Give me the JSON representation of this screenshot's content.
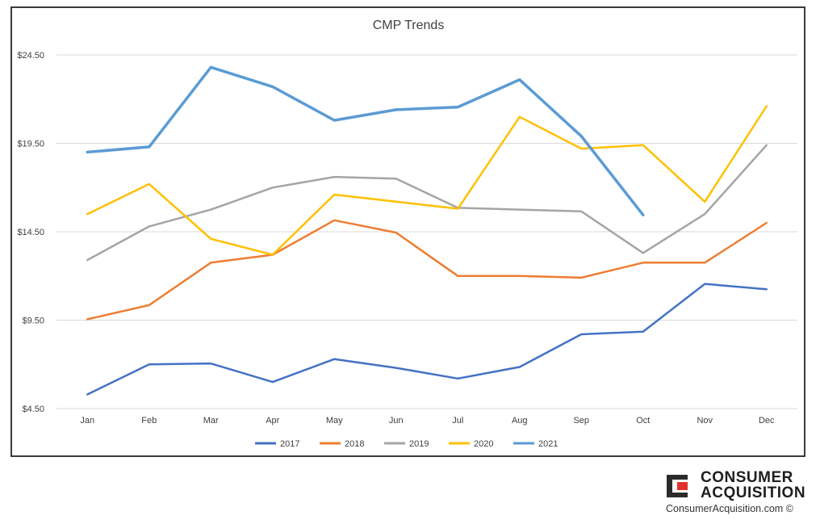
{
  "chart_data": {
    "type": "line",
    "title": "CMP Trends",
    "xlabel": "",
    "ylabel": "",
    "categories": [
      "Jan",
      "Feb",
      "Mar",
      "Apr",
      "May",
      "Jun",
      "Jul",
      "Aug",
      "Sep",
      "Oct",
      "Nov",
      "Dec"
    ],
    "yticks": [
      "$4.50",
      "$9.50",
      "$14.50",
      "$19.50",
      "$24.50"
    ],
    "ylim": [
      4.5,
      24.5
    ],
    "grid": true,
    "legend_position": "bottom",
    "series": [
      {
        "name": "2017",
        "color": "#4472C4",
        "values": [
          5.3,
          7.0,
          7.05,
          6.0,
          7.3,
          6.8,
          6.2,
          6.85,
          8.7,
          8.85,
          11.55,
          11.25
        ]
      },
      {
        "name": "2018",
        "color": "#ED7D31",
        "values": [
          9.55,
          10.35,
          12.75,
          13.2,
          15.15,
          14.45,
          12.0,
          12.0,
          11.9,
          12.75,
          12.75,
          15.0
        ]
      },
      {
        "name": "2019",
        "color": "#A5A5A5",
        "values": [
          12.9,
          14.8,
          15.75,
          17.0,
          17.6,
          17.5,
          15.85,
          15.75,
          15.65,
          13.3,
          15.5,
          19.4
        ]
      },
      {
        "name": "2020",
        "color": "#FFC000",
        "values": [
          15.5,
          17.2,
          14.1,
          13.2,
          16.6,
          16.2,
          15.8,
          21.0,
          19.2,
          19.4,
          16.2,
          21.6
        ]
      },
      {
        "name": "2021",
        "color": "#5B9BD5",
        "values": [
          19.0,
          19.3,
          23.8,
          22.7,
          20.8,
          21.4,
          21.55,
          23.1,
          19.9,
          15.45,
          null,
          null
        ]
      }
    ]
  },
  "branding": {
    "logo_line1": "CONSUMER",
    "logo_line2": "ACQUISITION",
    "site": "ConsumerAcquisition.com ©"
  }
}
